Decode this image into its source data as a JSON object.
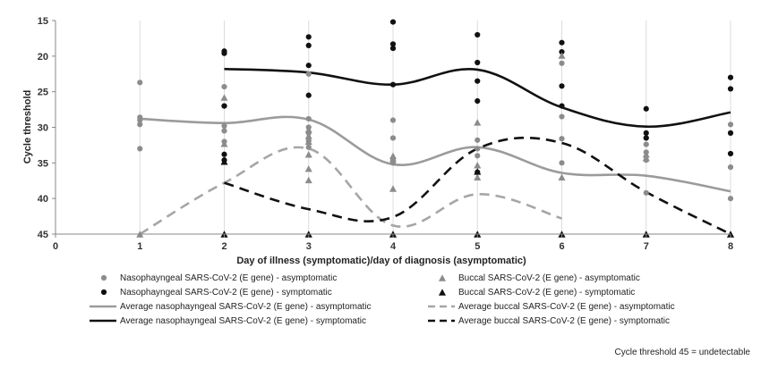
{
  "chart_data": {
    "type": "scatter",
    "title": "",
    "xlabel": "Day of illness (symptomatic)/day of diagnosis (asymptomatic)",
    "ylabel": "Cycle threshold",
    "xlim": [
      0,
      8
    ],
    "ylim": [
      15,
      45
    ],
    "y_inverted": true,
    "x_ticks": [
      0,
      1,
      2,
      3,
      4,
      5,
      6,
      7,
      8
    ],
    "y_ticks": [
      15,
      20,
      25,
      30,
      35,
      40,
      45
    ],
    "grid": "vertical",
    "legend_placement": "bottom",
    "note": "Cycle threshold 45  = undetectable",
    "series": [
      {
        "name": "Nasophayngeal SARS-CoV-2 (E gene) - asymptomatic",
        "kind": "points",
        "marker": "circle",
        "color": "#8c8c8c",
        "points": [
          [
            1,
            23.7
          ],
          [
            1,
            28.6
          ],
          [
            1,
            29.0
          ],
          [
            1,
            29.6
          ],
          [
            1,
            33.0
          ],
          [
            2,
            24.3
          ],
          [
            2,
            27.0
          ],
          [
            2,
            29.8
          ],
          [
            2,
            30.5
          ],
          [
            2,
            32.0
          ],
          [
            3,
            22.5
          ],
          [
            3,
            28.8
          ],
          [
            3,
            30.0
          ],
          [
            3,
            30.8
          ],
          [
            3,
            31.9
          ],
          [
            3,
            32.8
          ],
          [
            4,
            29.0
          ],
          [
            4,
            31.5
          ],
          [
            4,
            34.4
          ],
          [
            4,
            35.0
          ],
          [
            5,
            31.8
          ],
          [
            5,
            33.0
          ],
          [
            5,
            34.0
          ],
          [
            6,
            21.0
          ],
          [
            6,
            28.5
          ],
          [
            6,
            31.6
          ],
          [
            6,
            35.0
          ],
          [
            7,
            31.5
          ],
          [
            7,
            32.4
          ],
          [
            7,
            33.5
          ],
          [
            7,
            34.6
          ],
          [
            7,
            39.2
          ],
          [
            8,
            29.6
          ],
          [
            8,
            35.6
          ],
          [
            8,
            40.0
          ]
        ]
      },
      {
        "name": "Nasophayngeal SARS-CoV-2 (E gene) - symptomatic",
        "kind": "points",
        "marker": "circle",
        "color": "#111111",
        "points": [
          [
            2,
            19.3
          ],
          [
            2,
            19.6
          ],
          [
            2,
            27.0
          ],
          [
            2,
            33.8
          ],
          [
            2,
            34.6
          ],
          [
            3,
            17.3
          ],
          [
            3,
            18.5
          ],
          [
            3,
            21.3
          ],
          [
            3,
            25.5
          ],
          [
            4,
            15.2
          ],
          [
            4,
            18.3
          ],
          [
            4,
            18.9
          ],
          [
            4,
            24.0
          ],
          [
            5,
            17.0
          ],
          [
            5,
            20.9
          ],
          [
            5,
            23.5
          ],
          [
            5,
            26.3
          ],
          [
            5,
            36.3
          ],
          [
            6,
            18.1
          ],
          [
            6,
            19.4
          ],
          [
            6,
            24.2
          ],
          [
            6,
            27.0
          ],
          [
            7,
            27.4
          ],
          [
            7,
            30.8
          ],
          [
            7,
            31.5
          ],
          [
            8,
            23.0
          ],
          [
            8,
            24.6
          ],
          [
            8,
            30.8
          ],
          [
            8,
            33.7
          ]
        ]
      },
      {
        "name": "Buccal SARS-CoV-2 (E gene) - asymptomatic",
        "kind": "points",
        "marker": "triangle",
        "color": "#8c8c8c",
        "points": [
          [
            1,
            45
          ],
          [
            2,
            25.8
          ],
          [
            2,
            32.3
          ],
          [
            2,
            45
          ],
          [
            3,
            30.3
          ],
          [
            3,
            31.2
          ],
          [
            3,
            32.0
          ],
          [
            3,
            33.8
          ],
          [
            3,
            35.8
          ],
          [
            3,
            37.4
          ],
          [
            3,
            45
          ],
          [
            4,
            34.0
          ],
          [
            4,
            34.4
          ],
          [
            4,
            38.6
          ],
          [
            4,
            45
          ],
          [
            5,
            29.3
          ],
          [
            5,
            35.3
          ],
          [
            5,
            37.0
          ],
          [
            5,
            45
          ],
          [
            6,
            19.9
          ],
          [
            6,
            37.0
          ],
          [
            6,
            45
          ],
          [
            7,
            33.8
          ],
          [
            7,
            34.3
          ],
          [
            7,
            45
          ],
          [
            8,
            45
          ]
        ]
      },
      {
        "name": "Buccal SARS-CoV-2 (E gene) - symptomatic",
        "kind": "points",
        "marker": "triangle",
        "color": "#111111",
        "points": [
          [
            2,
            34.8
          ],
          [
            2,
            45
          ],
          [
            3,
            45
          ],
          [
            4,
            45
          ],
          [
            5,
            36.2
          ],
          [
            5,
            45
          ],
          [
            6,
            45
          ],
          [
            7,
            45
          ],
          [
            8,
            45
          ]
        ]
      },
      {
        "name": "Average nasophayngeal SARS-CoV-2 (E gene) - asymptomatic",
        "kind": "line",
        "style": "solid",
        "color": "#9b9b9b",
        "x": [
          1,
          2,
          3,
          4,
          5,
          6,
          7,
          8
        ],
        "y": [
          28.8,
          29.4,
          28.9,
          35.2,
          32.8,
          36.4,
          36.8,
          39.0
        ]
      },
      {
        "name": "Average nasophayngeal SARS-CoV-2 (E gene) - symptomatic",
        "kind": "line",
        "style": "solid",
        "color": "#111111",
        "x": [
          2,
          3,
          4,
          5,
          6,
          7,
          8
        ],
        "y": [
          21.8,
          22.3,
          24.0,
          21.9,
          27.2,
          29.9,
          27.9
        ]
      },
      {
        "name": "Average buccal SARS-CoV-2 (E gene) - asymptomatic",
        "kind": "line",
        "style": "dashed",
        "color": "#a6a6a6",
        "x": [
          1,
          2,
          3,
          4,
          5,
          6
        ],
        "y": [
          45,
          37.8,
          33.0,
          43.8,
          39.4,
          42.8
        ]
      },
      {
        "name": "Average buccal SARS-CoV-2 (E gene) - symptomatic",
        "kind": "line",
        "style": "dashed",
        "color": "#111111",
        "x": [
          2,
          3,
          4,
          5,
          6,
          7,
          8
        ],
        "y": [
          37.8,
          41.5,
          42.6,
          33.0,
          32.2,
          39.1,
          45.0
        ]
      }
    ]
  }
}
